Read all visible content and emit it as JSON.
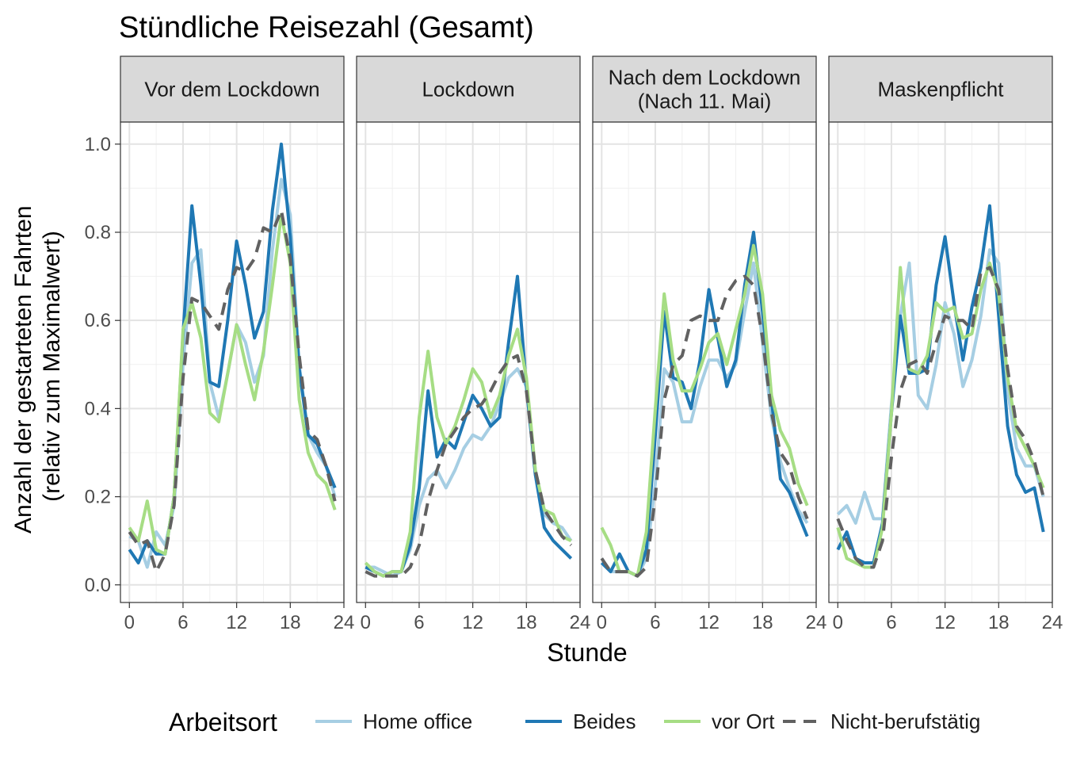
{
  "chart_data": {
    "type": "line",
    "title": "Stündliche Reisezahl (Gesamt)",
    "xlabel": "Stunde",
    "ylabel_lines": [
      "Anzahl der gestarteten Fahrten",
      "(relativ zum Maximalwert)"
    ],
    "xlim": [
      -1,
      24
    ],
    "ylim": [
      -0.04,
      1.05
    ],
    "x_ticks": [
      0,
      6,
      12,
      18,
      24
    ],
    "y_ticks": [
      0.0,
      0.2,
      0.4,
      0.6,
      0.8,
      1.0
    ],
    "y_tick_labels": [
      "0.0",
      "0.2",
      "0.4",
      "0.6",
      "0.8",
      "1.0"
    ],
    "grid": true,
    "legend": {
      "title": "Arbeitsort",
      "position": "bottom",
      "entries": [
        {
          "name": "Home office",
          "color": "#a6cee3",
          "dash": "solid"
        },
        {
          "name": "Beides",
          "color": "#1f78b4",
          "dash": "solid"
        },
        {
          "name": "vor Ort",
          "color": "#a6dd84",
          "dash": "solid"
        },
        {
          "name": "Nicht-berufstätig",
          "color": "#616161",
          "dash": "dashed"
        }
      ]
    },
    "x": [
      0,
      1,
      2,
      3,
      4,
      5,
      6,
      7,
      8,
      9,
      10,
      11,
      12,
      13,
      14,
      15,
      16,
      17,
      18,
      19,
      20,
      21,
      22,
      23
    ],
    "panels": [
      {
        "strip_lines": [
          "Vor dem Lockdown"
        ],
        "series": [
          {
            "name": "Home office",
            "values": [
              0.11,
              0.1,
              0.04,
              0.12,
              0.09,
              0.18,
              0.5,
              0.73,
              0.76,
              0.46,
              0.38,
              0.48,
              0.59,
              0.55,
              0.46,
              0.52,
              0.76,
              0.92,
              0.84,
              0.5,
              0.34,
              0.3,
              0.27,
              0.2
            ]
          },
          {
            "name": "Beides",
            "values": [
              0.08,
              0.05,
              0.1,
              0.07,
              0.07,
              0.2,
              0.57,
              0.86,
              0.68,
              0.46,
              0.45,
              0.6,
              0.78,
              0.68,
              0.56,
              0.62,
              0.85,
              1.0,
              0.79,
              0.49,
              0.34,
              0.32,
              0.27,
              0.22
            ]
          },
          {
            "name": "vor Ort",
            "values": [
              0.13,
              0.1,
              0.19,
              0.08,
              0.07,
              0.2,
              0.58,
              0.64,
              0.56,
              0.39,
              0.37,
              0.48,
              0.59,
              0.5,
              0.42,
              0.53,
              0.68,
              0.84,
              0.73,
              0.42,
              0.3,
              0.25,
              0.23,
              0.17
            ]
          },
          {
            "name": "Nicht-berufstätig",
            "values": [
              0.12,
              0.09,
              0.1,
              0.03,
              0.07,
              0.18,
              0.47,
              0.65,
              0.64,
              0.61,
              0.58,
              0.67,
              0.72,
              0.71,
              0.74,
              0.81,
              0.8,
              0.85,
              0.74,
              0.52,
              0.35,
              0.33,
              0.27,
              0.19
            ]
          }
        ]
      },
      {
        "strip_lines": [
          "Lockdown"
        ],
        "series": [
          {
            "name": "Home office",
            "values": [
              0.04,
              0.04,
              0.03,
              0.02,
              0.03,
              0.08,
              0.18,
              0.24,
              0.26,
              0.22,
              0.26,
              0.31,
              0.34,
              0.33,
              0.36,
              0.41,
              0.47,
              0.49,
              0.45,
              0.26,
              0.16,
              0.14,
              0.13,
              0.1
            ]
          },
          {
            "name": "Beides",
            "values": [
              0.04,
              0.03,
              0.02,
              0.03,
              0.03,
              0.09,
              0.22,
              0.44,
              0.29,
              0.33,
              0.31,
              0.37,
              0.43,
              0.4,
              0.36,
              0.38,
              0.55,
              0.7,
              0.45,
              0.25,
              0.13,
              0.1,
              0.08,
              0.06
            ]
          },
          {
            "name": "vor Ort",
            "values": [
              0.05,
              0.03,
              0.02,
              0.03,
              0.03,
              0.12,
              0.38,
              0.53,
              0.38,
              0.32,
              0.36,
              0.42,
              0.49,
              0.46,
              0.38,
              0.43,
              0.52,
              0.58,
              0.47,
              0.26,
              0.17,
              0.16,
              0.11,
              0.1
            ]
          },
          {
            "name": "Nicht-berufstätig",
            "values": [
              0.03,
              0.02,
              0.02,
              0.02,
              0.02,
              0.04,
              0.09,
              0.19,
              0.26,
              0.32,
              0.35,
              0.38,
              0.4,
              0.41,
              0.44,
              0.48,
              0.51,
              0.52,
              0.44,
              0.26,
              0.17,
              0.14,
              0.11,
              0.09
            ]
          }
        ]
      },
      {
        "strip_lines": [
          "Nach dem Lockdown",
          "(Nach 11. Mai)"
        ],
        "series": [
          {
            "name": "Home office",
            "values": [
              0.06,
              0.03,
              0.03,
              0.03,
              0.02,
              0.06,
              0.23,
              0.49,
              0.46,
              0.37,
              0.37,
              0.45,
              0.51,
              0.51,
              0.47,
              0.5,
              0.62,
              0.73,
              0.55,
              0.38,
              0.28,
              0.22,
              0.17,
              0.14
            ]
          },
          {
            "name": "Beides",
            "values": [
              0.05,
              0.03,
              0.07,
              0.03,
              0.02,
              0.08,
              0.34,
              0.62,
              0.47,
              0.46,
              0.4,
              0.51,
              0.67,
              0.56,
              0.45,
              0.51,
              0.68,
              0.8,
              0.62,
              0.42,
              0.24,
              0.21,
              0.16,
              0.11
            ]
          },
          {
            "name": "vor Ort",
            "values": [
              0.13,
              0.09,
              0.03,
              0.03,
              0.02,
              0.12,
              0.4,
              0.66,
              0.51,
              0.44,
              0.44,
              0.49,
              0.55,
              0.57,
              0.5,
              0.58,
              0.66,
              0.77,
              0.66,
              0.43,
              0.35,
              0.31,
              0.23,
              0.18
            ]
          },
          {
            "name": "Nicht-berufstätig",
            "values": [
              0.06,
              0.03,
              0.03,
              0.03,
              0.02,
              0.04,
              0.2,
              0.42,
              0.5,
              0.52,
              0.6,
              0.61,
              0.6,
              0.6,
              0.66,
              0.69,
              0.7,
              0.68,
              0.56,
              0.39,
              0.3,
              0.27,
              0.2,
              0.15
            ]
          }
        ]
      },
      {
        "strip_lines": [
          "Maskenpflicht"
        ],
        "series": [
          {
            "name": "Home office",
            "values": [
              0.16,
              0.18,
              0.14,
              0.21,
              0.15,
              0.15,
              0.41,
              0.61,
              0.73,
              0.43,
              0.4,
              0.5,
              0.64,
              0.57,
              0.45,
              0.51,
              0.61,
              0.76,
              0.73,
              0.44,
              0.31,
              0.27,
              0.27,
              0.2
            ]
          },
          {
            "name": "Beides",
            "values": [
              0.08,
              0.12,
              0.06,
              0.05,
              0.05,
              0.14,
              0.39,
              0.61,
              0.48,
              0.48,
              0.49,
              0.68,
              0.79,
              0.64,
              0.51,
              0.63,
              0.72,
              0.86,
              0.61,
              0.36,
              0.25,
              0.21,
              0.22,
              0.12
            ]
          },
          {
            "name": "vor Ort",
            "values": [
              0.13,
              0.06,
              0.05,
              0.04,
              0.04,
              0.13,
              0.39,
              0.72,
              0.49,
              0.48,
              0.52,
              0.64,
              0.62,
              0.63,
              0.56,
              0.57,
              0.67,
              0.73,
              0.66,
              0.47,
              0.35,
              0.31,
              0.27,
              0.22
            ]
          },
          {
            "name": "Nicht-berufstätig",
            "values": [
              0.15,
              0.1,
              0.06,
              0.04,
              0.04,
              0.1,
              0.29,
              0.44,
              0.5,
              0.51,
              0.48,
              0.55,
              0.61,
              0.6,
              0.6,
              0.58,
              0.71,
              0.72,
              0.67,
              0.49,
              0.36,
              0.33,
              0.28,
              0.2
            ]
          }
        ]
      }
    ]
  }
}
